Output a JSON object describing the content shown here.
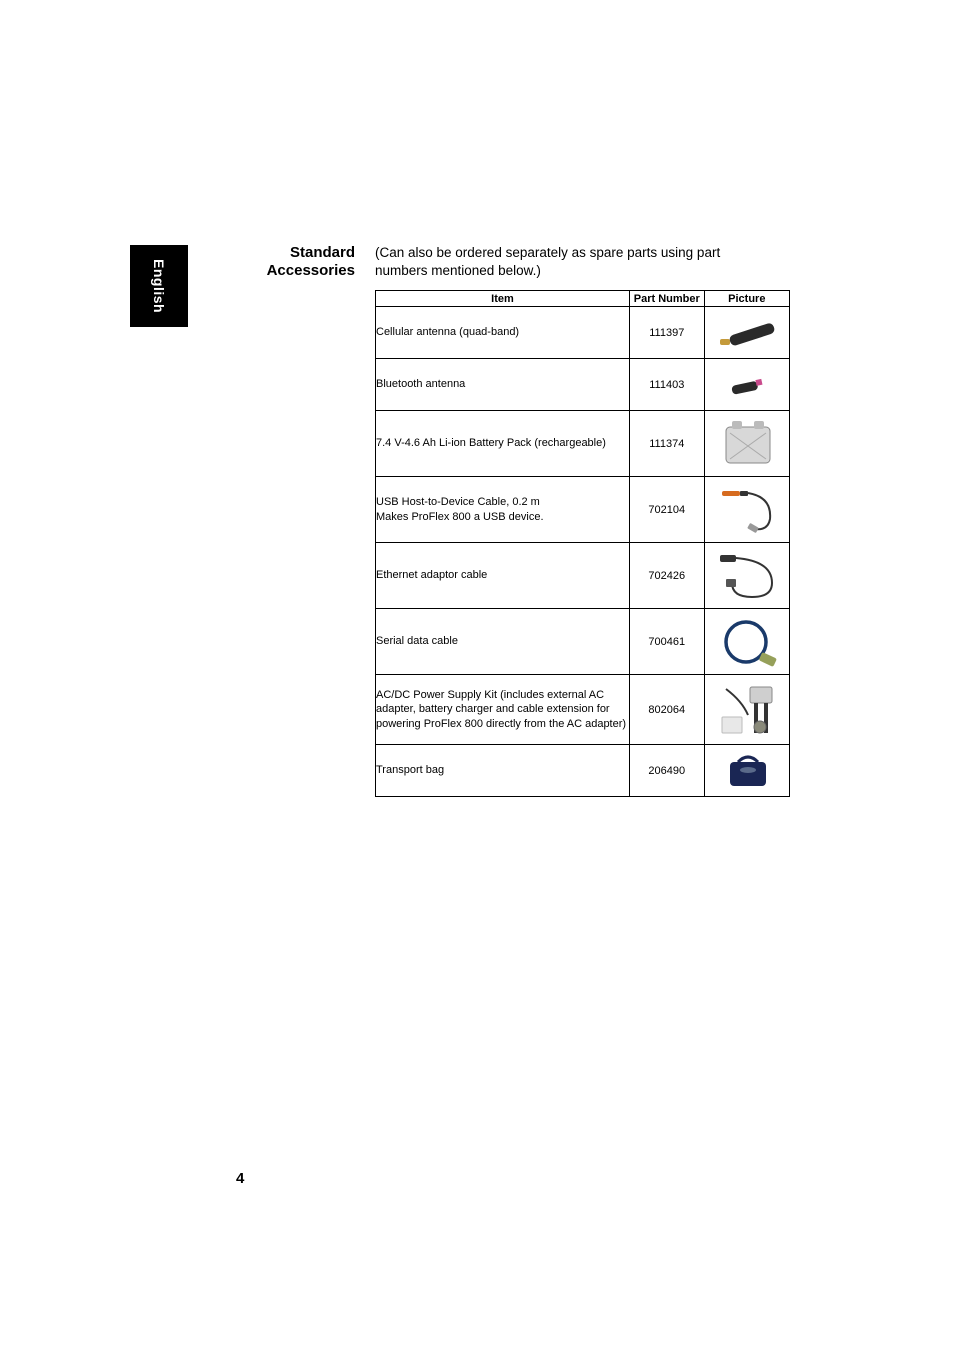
{
  "language_tab": "English",
  "section_heading_line1": "Standard",
  "section_heading_line2": "Accessories",
  "intro_text": "(Can also be ordered separately as spare parts using part numbers mentioned below.)",
  "table": {
    "headers": {
      "item": "Item",
      "part_number": "Part Number",
      "picture": "Picture"
    },
    "rows": [
      {
        "item": "Cellular antenna (quad-band)",
        "part_number": "111397",
        "icon": "antenna-long"
      },
      {
        "item": "Bluetooth antenna",
        "part_number": "111403",
        "icon": "antenna-short"
      },
      {
        "item": "7.4 V-4.6 Ah Li-ion Battery Pack (rechargeable)",
        "part_number": "111374",
        "icon": "battery"
      },
      {
        "item": "USB Host-to-Device Cable, 0.2 m\nMakes ProFlex 800 a USB device.",
        "part_number": "702104",
        "icon": "usb-cable"
      },
      {
        "item": "Ethernet adaptor cable",
        "part_number": "702426",
        "icon": "eth-cable"
      },
      {
        "item": "Serial data cable",
        "part_number": "700461",
        "icon": "serial-cable"
      },
      {
        "item": "AC/DC Power Supply Kit (includes external AC adapter, battery charger and cable extension for powering ProFlex 800 directly from the AC adapter)",
        "part_number": "802064",
        "icon": "psu-kit"
      },
      {
        "item": "Transport bag",
        "part_number": "206490",
        "icon": "bag"
      }
    ]
  },
  "page_number": "4",
  "icons": {
    "antenna-long": "<svg width='70' height='40' viewBox='0 0 70 40'><rect x='8' y='26' width='10' height='6' rx='2' fill='#c49a3a'/><rect x='18' y='23' width='46' height='11' rx='5' fill='#2a2a2a' transform='rotate(-18 18 28)'/></svg>",
    "antenna-short": "<svg width='70' height='34' viewBox='0 0 70 34'><rect x='20' y='18' width='26' height='9' rx='4' fill='#2a2a2a' transform='rotate(-12 20 22)'/><rect x='44' y='12' width='6' height='6' fill='#c94b8c' transform='rotate(-12 44 15)'/></svg>",
    "battery": "<svg width='70' height='54' viewBox='0 0 70 54'><rect x='14' y='10' width='44' height='36' rx='4' fill='#d8d8d8' stroke='#888' stroke-width='1'/><rect x='20' y='4' width='10' height='8' rx='2' fill='#bbb'/><rect x='42' y='4' width='10' height='8' rx='2' fill='#bbb'/><line x1='18' y1='16' x2='54' y2='42' stroke='#aaa' stroke-width='1'/><line x1='18' y1='42' x2='54' y2='16' stroke='#aaa' stroke-width='1'/></svg>",
    "usb-cable": "<svg width='70' height='54' viewBox='0 0 70 54'><rect x='10' y='8' width='18' height='5' rx='2' fill='#d66b1f'/><rect x='28' y='8' width='8' height='5' rx='1' fill='#333'/><path d='M 36 10 Q 60 14 58 36 Q 56 48 42 46' fill='none' stroke='#333' stroke-width='2'/><rect x='36' y='42' width='10' height='6' rx='1' fill='#999' transform='rotate(30 41 45)'/></svg>",
    "eth-cable": "<svg width='70' height='54' viewBox='0 0 70 54'><rect x='8' y='6' width='16' height='7' rx='2' fill='#333'/><path d='M 24 9 Q 60 12 60 34 Q 60 48 40 48 Q 20 48 20 34' fill='none' stroke='#333' stroke-width='2'/><rect x='14' y='30' width='10' height='8' rx='1' fill='#555'/></svg>",
    "serial-cable": "<svg width='70' height='54' viewBox='0 0 70 54'><circle cx='34' cy='27' r='20' fill='none' stroke='#1a3a6a' stroke-width='3.5'/><rect x='48' y='40' width='16' height='9' rx='2' fill='#96a05a' transform='rotate(25 56 44)'/></svg>",
    "psu-kit": "<svg width='70' height='58' viewBox='0 0 70 58'><rect x='38' y='6' width='22' height='16' rx='2' fill='#cfcfcf' stroke='#888'/><rect x='42' y='22' width='4' height='30' fill='#333'/><rect x='52' y='22' width='4' height='30' fill='#333'/><rect x='10' y='36' width='20' height='16' rx='1' fill='#e8e8e8' stroke='#bbb'/><circle cx='48' cy='46' r='6' fill='#8a8a7a' stroke='#666'/><path d='M 14 8 Q 30 20 36 34' fill='none' stroke='#333' stroke-width='2'/></svg>",
    "bag": "<svg width='70' height='42' viewBox='0 0 70 42'><rect x='18' y='12' width='36' height='24' rx='4' fill='#1a2654'/><path d='M 26 12 Q 36 2 46 12' fill='none' stroke='#1a2654' stroke-width='3'/><ellipse cx='36' cy='20' rx='8' ry='3' fill='#5a6a8a'/></svg>"
  }
}
